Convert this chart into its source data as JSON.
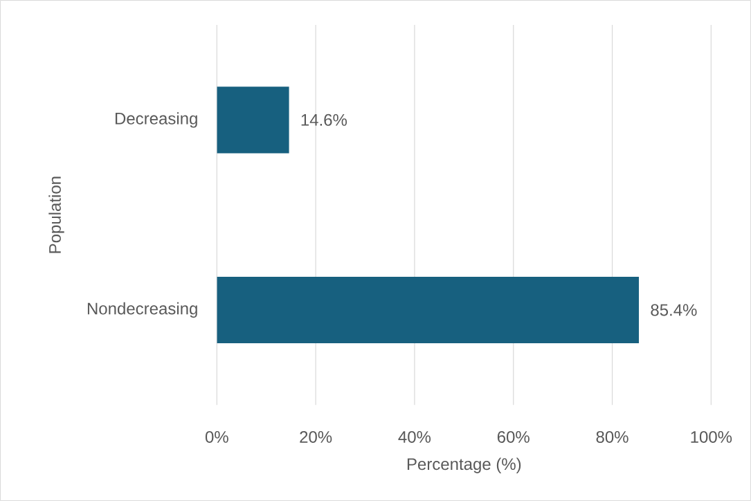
{
  "chart_data": {
    "type": "bar",
    "orientation": "horizontal",
    "categories": [
      "Decreasing",
      "Nondecreasing"
    ],
    "values": [
      14.6,
      85.4
    ],
    "color": "#17607f",
    "value_labels": [
      "14.6%",
      "85.4%"
    ],
    "xlabel": "Percentage (%)",
    "ylabel": "Population",
    "xlim": [
      0,
      100
    ],
    "xticks": [
      {
        "value": 0,
        "label": "0%"
      },
      {
        "value": 20,
        "label": "20%"
      },
      {
        "value": 40,
        "label": "40%"
      },
      {
        "value": 60,
        "label": "60%"
      },
      {
        "value": 80,
        "label": "80%"
      },
      {
        "value": 100,
        "label": "100%"
      }
    ],
    "grid": "x"
  }
}
